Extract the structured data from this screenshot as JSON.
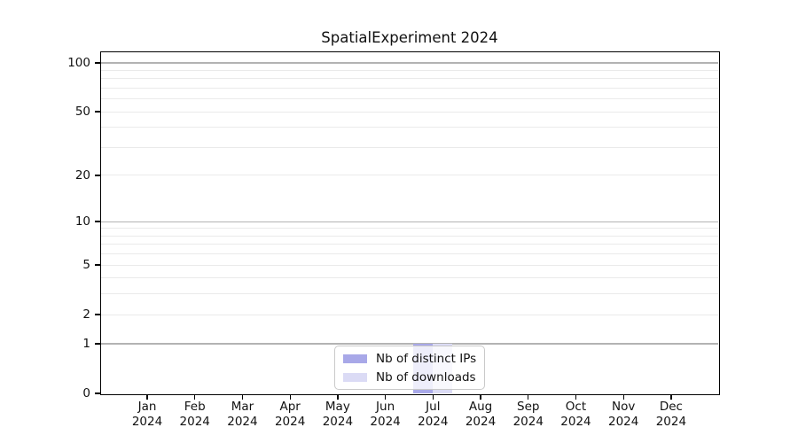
{
  "chart_data": {
    "type": "bar",
    "title": "SpatialExperiment 2024",
    "categories": [
      "Jan",
      "Feb",
      "Mar",
      "Apr",
      "May",
      "Jun",
      "Jul",
      "Aug",
      "Sep",
      "Oct",
      "Nov",
      "Dec"
    ],
    "x_year": "2024",
    "series": [
      {
        "name": "Nb of distinct IPs",
        "color": "#a8a8e8",
        "values": [
          0,
          0,
          0,
          0,
          0,
          0,
          1,
          0,
          0,
          0,
          0,
          0
        ]
      },
      {
        "name": "Nb of downloads",
        "color": "#dbdbf5",
        "values": [
          0,
          0,
          0,
          0,
          0,
          0,
          1,
          0,
          0,
          0,
          0,
          0
        ]
      }
    ],
    "xlabel": "",
    "ylabel": "",
    "y_axis": {
      "scale": "log10(1+x)",
      "ticks": [
        0,
        1,
        2,
        5,
        10,
        20,
        50,
        100
      ],
      "major_gridlines": [
        1,
        10,
        100
      ],
      "minor_gridlines": [
        3,
        4,
        6,
        7,
        8,
        9,
        30,
        40,
        60,
        70,
        80,
        90,
        2,
        5,
        20,
        50
      ],
      "ylim": [
        0,
        116
      ]
    },
    "grid": "horizontal",
    "legend_position": "lower center",
    "colors": {
      "axis": "#000000",
      "major_grid": "#b3b3b3",
      "minor_grid": "#eaeaea",
      "background": "#ffffff"
    }
  }
}
